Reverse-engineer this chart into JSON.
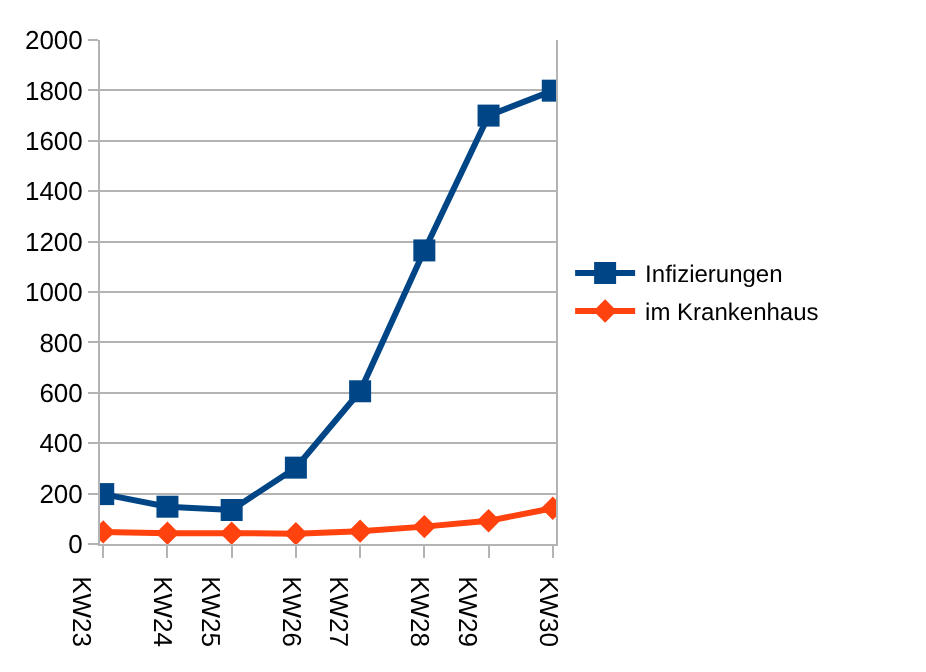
{
  "chart_data": {
    "type": "line",
    "categories": [
      "KW23",
      "KW24",
      "KW25",
      "KW26",
      "KW27",
      "KW28",
      "KW29",
      "KW30"
    ],
    "series": [
      {
        "name": "Infizierungen",
        "color": "#004586",
        "marker": "square",
        "values": [
          198,
          148,
          135,
          303,
          606,
          1165,
          1700,
          1799
        ]
      },
      {
        "name": "im Krankenhaus",
        "color": "#ff420e",
        "marker": "diamond",
        "values": [
          48,
          43,
          43,
          41,
          51,
          69,
          92,
          142
        ]
      }
    ],
    "ylim": [
      0,
      2000
    ],
    "yticks": [
      0,
      200,
      400,
      600,
      800,
      1000,
      1200,
      1400,
      1600,
      1800,
      2000
    ],
    "grid": "y",
    "legend": "right",
    "line_style": "solid"
  }
}
